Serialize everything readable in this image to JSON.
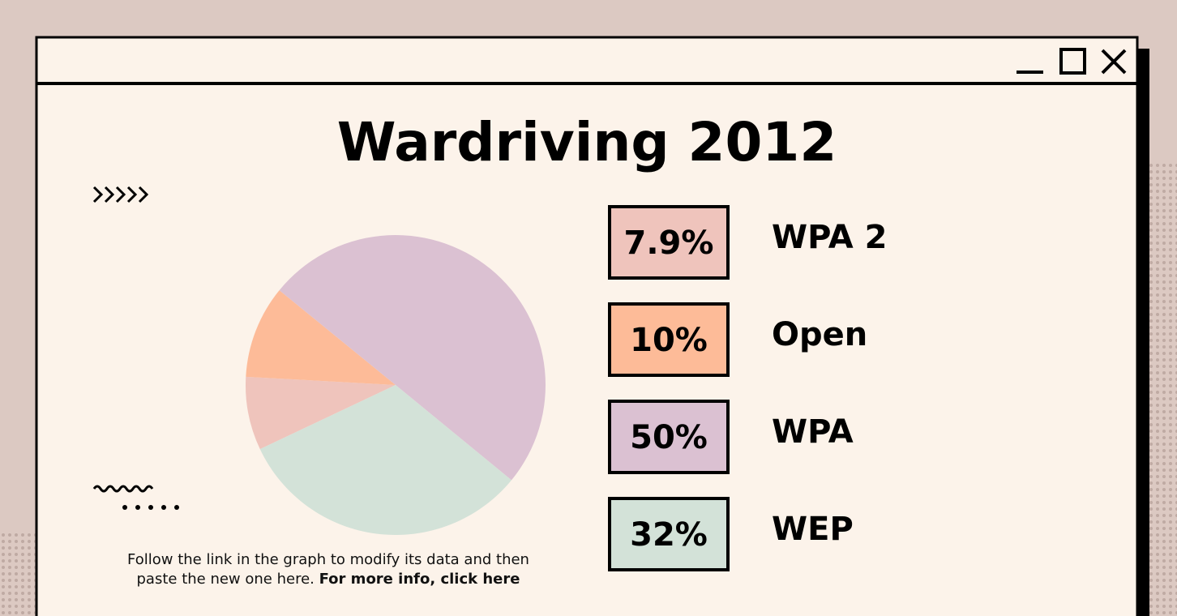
{
  "chart_data": {
    "type": "pie",
    "title": "Wardriving 2012",
    "categories": [
      "WPA 2",
      "Open",
      "WPA",
      "WEP"
    ],
    "values": [
      7.9,
      10,
      50,
      32
    ],
    "value_labels": [
      "7.9%",
      "10%",
      "50%",
      "32%"
    ],
    "colors": [
      "#efc4bc",
      "#fdbb98",
      "#dbc1d2",
      "#d3e2d8"
    ],
    "note": "Follow the link in the graph to modify its data and then paste the new one here.",
    "link": "For more info, click here"
  }
}
